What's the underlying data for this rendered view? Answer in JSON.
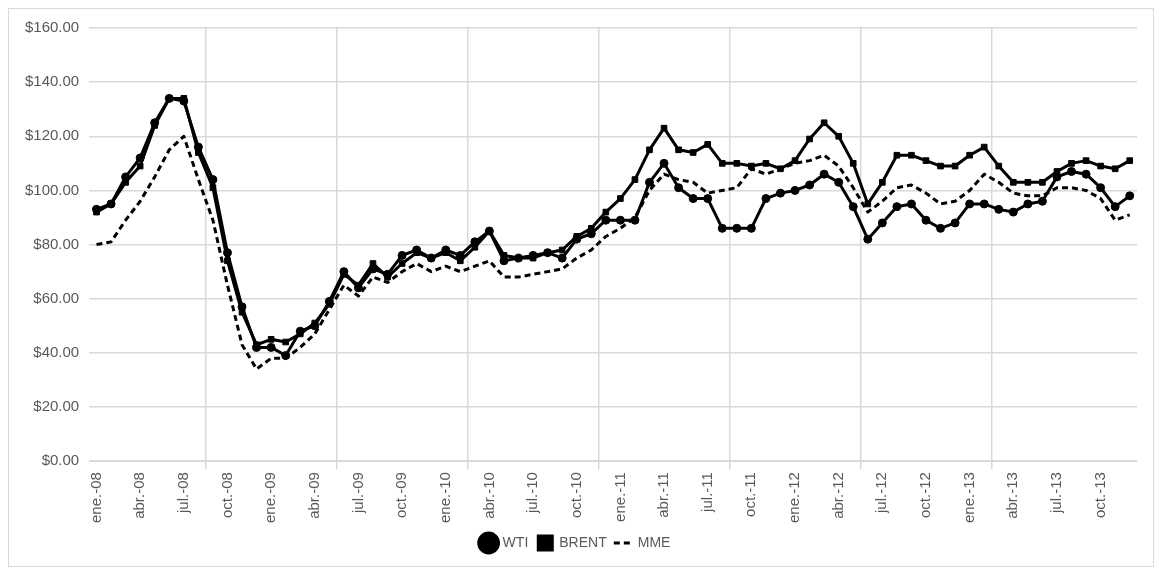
{
  "chart_data": {
    "type": "line",
    "categories": [
      "ene.-08",
      null,
      null,
      "abr.-08",
      null,
      null,
      "jul.-08",
      null,
      null,
      "oct.-08",
      null,
      null,
      "ene.-09",
      null,
      null,
      "abr.-09",
      null,
      null,
      "jul.-09",
      null,
      null,
      "oct.-09",
      null,
      null,
      "ene.-10",
      null,
      null,
      "abr.-10",
      null,
      null,
      "jul.-10",
      null,
      null,
      "oct.-10",
      null,
      null,
      "ene.-11",
      null,
      null,
      "abr.-11",
      null,
      null,
      "jul.-11",
      null,
      null,
      "oct.-11",
      null,
      null,
      "ene.-12",
      null,
      null,
      "abr.-12",
      null,
      null,
      "jul.-12",
      null,
      null,
      "oct.-12",
      null,
      null,
      "ene.-13",
      null,
      null,
      "abr.-13",
      null,
      null,
      "jul.-13",
      null,
      null,
      "oct.-13",
      null,
      null
    ],
    "series": [
      {
        "name": "WTI",
        "color": "#000000",
        "marker": "circle",
        "line_style": "solid",
        "values": [
          93,
          95,
          105,
          112,
          125,
          134,
          133,
          116,
          104,
          77,
          57,
          42,
          42,
          39,
          48,
          50,
          59,
          70,
          64,
          71,
          69,
          76,
          78,
          75,
          78,
          76,
          81,
          85,
          74,
          75,
          76,
          77,
          75,
          82,
          84,
          89,
          89,
          89,
          103,
          110,
          101,
          97,
          97,
          86,
          86,
          86,
          97,
          99,
          100,
          102,
          106,
          103,
          94,
          82,
          88,
          94,
          95,
          89,
          86,
          88,
          95,
          95,
          93,
          92,
          95,
          96,
          105,
          107,
          106,
          101,
          94,
          98
        ]
      },
      {
        "name": "BRENT",
        "color": "#000000",
        "marker": "square",
        "line_style": "solid",
        "values": [
          92,
          95,
          103,
          109,
          124,
          134,
          134,
          114,
          101,
          74,
          55,
          43,
          45,
          44,
          47,
          51,
          58,
          69,
          65,
          73,
          68,
          73,
          77,
          75,
          77,
          74,
          79,
          85,
          76,
          75,
          75,
          77,
          78,
          83,
          86,
          92,
          97,
          104,
          115,
          123,
          115,
          114,
          117,
          110,
          110,
          109,
          110,
          108,
          111,
          119,
          125,
          120,
          110,
          95,
          103,
          113,
          113,
          111,
          109,
          109,
          113,
          116,
          109,
          103,
          103,
          103,
          107,
          110,
          111,
          109,
          108,
          111
        ]
      },
      {
        "name": "MME",
        "color": "#000000",
        "marker": "none",
        "line_style": "dashed",
        "values": [
          80,
          81,
          89,
          96,
          105,
          115,
          120,
          104,
          89,
          65,
          43,
          34,
          38,
          38,
          42,
          47,
          56,
          65,
          61,
          68,
          66,
          70,
          73,
          70,
          72,
          70,
          72,
          74,
          68,
          68,
          69,
          70,
          71,
          75,
          78,
          83,
          86,
          90,
          100,
          106,
          104,
          103,
          99,
          100,
          101,
          108,
          106,
          108,
          110,
          111,
          113,
          109,
          101,
          92,
          96,
          101,
          102,
          99,
          95,
          96,
          100,
          106,
          103,
          99,
          98,
          98,
          101,
          101,
          100,
          97,
          89,
          91
        ]
      }
    ],
    "ylim": [
      0,
      160
    ],
    "yticks": [
      {
        "value": 0,
        "label": "$0.00"
      },
      {
        "value": 20,
        "label": "$20.00"
      },
      {
        "value": 40,
        "label": "$40.00"
      },
      {
        "value": 60,
        "label": "$60.00"
      },
      {
        "value": 80,
        "label": "$80.00"
      },
      {
        "value": 100,
        "label": "$100.00"
      },
      {
        "value": 120,
        "label": "$120.00"
      },
      {
        "value": 140,
        "label": "$140.00"
      },
      {
        "value": 160,
        "label": "$160.00"
      }
    ],
    "grid": true,
    "legend": "bottom"
  }
}
